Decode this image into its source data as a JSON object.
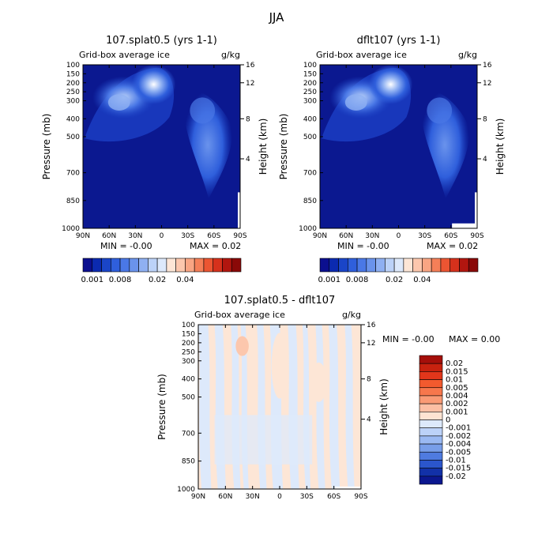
{
  "figure": {
    "title": "JJA"
  },
  "chart_data": [
    {
      "type": "heatmap",
      "title": "107.splat0.5 (yrs 1-1)",
      "field_label": "Grid-box average ice",
      "units": "g/kg",
      "xlabel": "",
      "ylabel": "Pressure (mb)",
      "y2label": "Height (km)",
      "x_ticks": [
        "90N",
        "60N",
        "30N",
        "0",
        "30S",
        "60S",
        "90S"
      ],
      "y_ticks": [
        "100",
        "150",
        "200",
        "250",
        "300",
        "400",
        "500",
        "700",
        "850",
        "1000"
      ],
      "y2_ticks": [
        "16",
        "12",
        "8",
        "4"
      ],
      "min_label": "MIN =",
      "min_value": "-0.00",
      "max_label": "MAX =",
      "max_value": "0.02",
      "colorbar_labels": [
        "0.001",
        "0.008",
        "0.02",
        "0.04"
      ],
      "colorbar_colors": [
        "#0b0f8f",
        "#0b2ab0",
        "#1a45c8",
        "#2f5fdc",
        "#4a78e6",
        "#6a93ec",
        "#8fb0f2",
        "#bcd2f8",
        "#dde9fb",
        "#fde6d6",
        "#fcc7ad",
        "#f9a583",
        "#f57f58",
        "#ec5532",
        "#d6311c",
        "#b2160f",
        "#8a0908"
      ]
    },
    {
      "type": "heatmap",
      "title": "dflt107 (yrs 1-1)",
      "field_label": "Grid-box average ice",
      "units": "g/kg",
      "xlabel": "",
      "ylabel": "Pressure (mb)",
      "y2label": "Height (km)",
      "x_ticks": [
        "90N",
        "60N",
        "30N",
        "0",
        "30S",
        "60S",
        "90S"
      ],
      "y_ticks": [
        "100",
        "150",
        "200",
        "250",
        "300",
        "400",
        "500",
        "700",
        "850",
        "1000"
      ],
      "y2_ticks": [
        "16",
        "12",
        "8",
        "4"
      ],
      "min_label": "MIN =",
      "min_value": "-0.00",
      "max_label": "MAX =",
      "max_value": "0.02",
      "colorbar_labels": [
        "0.001",
        "0.008",
        "0.02",
        "0.04"
      ],
      "colorbar_colors": [
        "#0b0f8f",
        "#0b2ab0",
        "#1a45c8",
        "#2f5fdc",
        "#4a78e6",
        "#6a93ec",
        "#8fb0f2",
        "#bcd2f8",
        "#dde9fb",
        "#fde6d6",
        "#fcc7ad",
        "#f9a583",
        "#f57f58",
        "#ec5532",
        "#d6311c",
        "#b2160f",
        "#8a0908"
      ]
    },
    {
      "type": "heatmap",
      "title": "107.splat0.5 - dflt107",
      "field_label": "Grid-box average ice",
      "units": "g/kg",
      "xlabel": "",
      "ylabel": "Pressure (mb)",
      "y2label": "Height (km)",
      "x_ticks": [
        "90N",
        "60N",
        "30N",
        "0",
        "30S",
        "60S",
        "90S"
      ],
      "y_ticks": [
        "100",
        "150",
        "200",
        "250",
        "300",
        "400",
        "500",
        "700",
        "850",
        "1000"
      ],
      "y2_ticks": [
        "16",
        "12",
        "8",
        "4"
      ],
      "min_label": "MIN =",
      "min_value": "-0.00",
      "max_label": "MAX =",
      "max_value": "0.00",
      "colorbar_labels": [
        "0.02",
        "0.015",
        "0.01",
        "0.005",
        "0.004",
        "0.002",
        "0.001",
        "0",
        "-0.001",
        "-0.002",
        "-0.004",
        "-0.005",
        "-0.01",
        "-0.015",
        "-0.02"
      ],
      "colorbar_colors": [
        "#a50f0a",
        "#c8220f",
        "#e2361b",
        "#f25a2e",
        "#f7774c",
        "#fa9a75",
        "#fcbfa4",
        "#fde3d2",
        "#dde9fb",
        "#bcd2f8",
        "#9ab9f2",
        "#789ee9",
        "#4f7be0",
        "#2b56cc",
        "#1231a8",
        "#0b178f"
      ]
    }
  ]
}
